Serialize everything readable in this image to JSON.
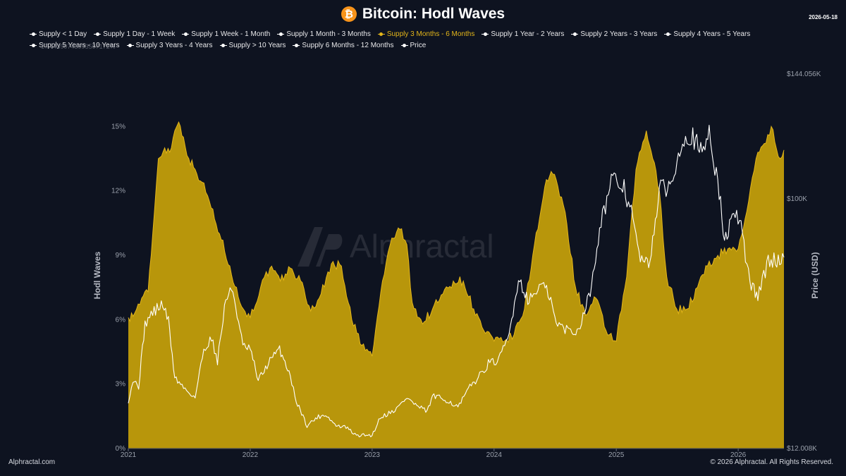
{
  "header": {
    "title": "Bitcoin: Hodl Waves",
    "date": "2026-05-18",
    "icon": "bitcoin-icon"
  },
  "legend": [
    {
      "label": "Supply < 1 Day",
      "color": "#ffffff"
    },
    {
      "label": "Supply 1 Day - 1 Week",
      "color": "#ffffff"
    },
    {
      "label": "Supply 1 Week - 1 Month",
      "color": "#ffffff"
    },
    {
      "label": "Supply 1 Month - 3 Months",
      "color": "#ffffff"
    },
    {
      "label": "Supply 3 Months - 6 Months",
      "color": "#e3b51a",
      "active": true
    },
    {
      "label": "Supply 1 Year - 2 Years",
      "color": "#ffffff"
    },
    {
      "label": "Supply 2 Years - 3 Years",
      "color": "#ffffff"
    },
    {
      "label": "Supply 4 Years - 5 Years",
      "color": "#ffffff"
    },
    {
      "label": "Supply 5 Years - 10 Years",
      "color": "#ffffff"
    },
    {
      "label": "Supply 3 Years - 4 Years",
      "color": "#ffffff"
    },
    {
      "label": "Supply > 10 Years",
      "color": "#ffffff"
    },
    {
      "label": "Supply 6 Months - 12 Months",
      "color": "#ffffff"
    },
    {
      "label": "Price",
      "color": "#ffffff"
    }
  ],
  "overlap_text": "17.44399743993597172%",
  "footer": {
    "left": "Alphractal.com",
    "right": "© 2026 Alphractal. All Rights Reserved."
  },
  "watermark": "Alphractal",
  "colors": {
    "background": "#0e1320",
    "area": "#b8960b",
    "area_line": "#e3b51a",
    "price_line": "#ffffff"
  },
  "chart_data": {
    "type": "area",
    "ylabel": "Hodl Waves",
    "y2label": "Price (USD)",
    "ylim": [
      0,
      17.44
    ],
    "yticks": [
      0,
      3,
      6,
      9,
      12,
      15
    ],
    "ytick_labels": [
      "0%",
      "3%",
      "6%",
      "9%",
      "12%",
      "15%"
    ],
    "y2lim": [
      12008,
      144056
    ],
    "y2ticks": [
      12008,
      100000,
      144056
    ],
    "y2tick_labels": [
      "$12.008K",
      "$100K",
      "$144.056K"
    ],
    "xlim": [
      "2021-01-01",
      "2026-05-18"
    ],
    "xticks": [
      "2021-01-01",
      "2022-01-01",
      "2023-01-01",
      "2024-01-01",
      "2025-01-01",
      "2026-01-01"
    ],
    "xtick_labels": [
      "2021",
      "2022",
      "2023",
      "2024",
      "2025",
      "2026"
    ],
    "grid": false,
    "legend_position": "top",
    "series": [
      {
        "name": "Supply 3 Months - 6 Months",
        "axis": "left",
        "color": "#e3b51a",
        "points": [
          [
            "2021-01-01",
            6.1
          ],
          [
            "2021-01-20",
            6.3
          ],
          [
            "2021-02-10",
            7.0
          ],
          [
            "2021-03-01",
            7.3
          ],
          [
            "2021-03-20",
            11.0
          ],
          [
            "2021-04-01",
            13.5
          ],
          [
            "2021-04-20",
            14.0
          ],
          [
            "2021-05-05",
            13.8
          ],
          [
            "2021-05-20",
            14.8
          ],
          [
            "2021-06-01",
            15.2
          ],
          [
            "2021-06-15",
            14.5
          ],
          [
            "2021-07-01",
            13.5
          ],
          [
            "2021-07-20",
            13.0
          ],
          [
            "2021-08-10",
            12.4
          ],
          [
            "2021-09-01",
            11.5
          ],
          [
            "2021-10-01",
            10.0
          ],
          [
            "2021-11-01",
            8.5
          ],
          [
            "2021-12-01",
            6.8
          ],
          [
            "2022-01-01",
            6.1
          ],
          [
            "2022-02-01",
            7.5
          ],
          [
            "2022-03-01",
            8.4
          ],
          [
            "2022-04-01",
            7.8
          ],
          [
            "2022-05-01",
            8.4
          ],
          [
            "2022-06-01",
            7.8
          ],
          [
            "2022-07-01",
            6.4
          ],
          [
            "2022-08-01",
            7.2
          ],
          [
            "2022-09-01",
            8.6
          ],
          [
            "2022-10-01",
            8.5
          ],
          [
            "2022-11-01",
            6.0
          ],
          [
            "2022-12-01",
            4.8
          ],
          [
            "2023-01-01",
            4.3
          ],
          [
            "2023-02-01",
            7.8
          ],
          [
            "2023-03-01",
            9.8
          ],
          [
            "2023-03-25",
            10.2
          ],
          [
            "2023-04-15",
            9.5
          ],
          [
            "2023-05-01",
            6.8
          ],
          [
            "2023-06-01",
            5.8
          ],
          [
            "2023-07-01",
            6.5
          ],
          [
            "2023-08-01",
            7.2
          ],
          [
            "2023-09-01",
            7.8
          ],
          [
            "2023-10-01",
            7.8
          ],
          [
            "2023-11-01",
            6.5
          ],
          [
            "2023-12-01",
            5.5
          ],
          [
            "2024-01-01",
            5.0
          ],
          [
            "2024-02-01",
            5.0
          ],
          [
            "2024-03-01",
            5.3
          ],
          [
            "2024-04-01",
            6.5
          ],
          [
            "2024-05-01",
            9.5
          ],
          [
            "2024-06-01",
            12.2
          ],
          [
            "2024-06-20",
            12.9
          ],
          [
            "2024-07-10",
            12.2
          ],
          [
            "2024-08-01",
            11.0
          ],
          [
            "2024-09-01",
            7.5
          ],
          [
            "2024-10-01",
            6.2
          ],
          [
            "2024-11-01",
            7.0
          ],
          [
            "2024-12-01",
            5.5
          ],
          [
            "2025-01-01",
            5.0
          ],
          [
            "2025-02-01",
            8.0
          ],
          [
            "2025-03-01",
            13.0
          ],
          [
            "2025-04-01",
            14.8
          ],
          [
            "2025-04-20",
            13.5
          ],
          [
            "2025-05-10",
            12.0
          ],
          [
            "2025-06-01",
            8.0
          ],
          [
            "2025-07-01",
            6.5
          ],
          [
            "2025-08-01",
            6.5
          ],
          [
            "2025-09-01",
            7.5
          ],
          [
            "2025-10-01",
            8.5
          ],
          [
            "2025-11-01",
            9.0
          ],
          [
            "2025-12-01",
            9.3
          ],
          [
            "2026-01-01",
            9.3
          ],
          [
            "2026-02-01",
            11.5
          ],
          [
            "2026-03-01",
            13.8
          ],
          [
            "2026-03-20",
            14.2
          ],
          [
            "2026-04-10",
            15.0
          ],
          [
            "2026-05-01",
            13.6
          ],
          [
            "2026-05-18",
            13.9
          ]
        ]
      },
      {
        "name": "Price",
        "axis": "right",
        "color": "#ffffff",
        "points": [
          [
            "2021-01-01",
            29000
          ],
          [
            "2021-01-15",
            36000
          ],
          [
            "2021-02-01",
            34000
          ],
          [
            "2021-02-20",
            56000
          ],
          [
            "2021-03-15",
            60000
          ],
          [
            "2021-04-14",
            63000
          ],
          [
            "2021-05-01",
            57000
          ],
          [
            "2021-05-20",
            37000
          ],
          [
            "2021-06-20",
            33000
          ],
          [
            "2021-07-20",
            30000
          ],
          [
            "2021-08-15",
            47000
          ],
          [
            "2021-09-07",
            51000
          ],
          [
            "2021-09-25",
            43000
          ],
          [
            "2021-10-20",
            65000
          ],
          [
            "2021-11-10",
            68000
          ],
          [
            "2021-12-10",
            48000
          ],
          [
            "2022-01-01",
            47000
          ],
          [
            "2022-01-25",
            36000
          ],
          [
            "2022-03-01",
            43000
          ],
          [
            "2022-03-30",
            47000
          ],
          [
            "2022-05-01",
            38000
          ],
          [
            "2022-05-15",
            30000
          ],
          [
            "2022-06-20",
            20000
          ],
          [
            "2022-07-20",
            23000
          ],
          [
            "2022-08-15",
            24000
          ],
          [
            "2022-09-15",
            20000
          ],
          [
            "2022-10-15",
            19500
          ],
          [
            "2022-11-15",
            16500
          ],
          [
            "2022-12-15",
            16800
          ],
          [
            "2023-01-01",
            16600
          ],
          [
            "2023-01-25",
            23000
          ],
          [
            "2023-02-20",
            24500
          ],
          [
            "2023-03-15",
            26000
          ],
          [
            "2023-04-15",
            30000
          ],
          [
            "2023-05-15",
            27000
          ],
          [
            "2023-06-15",
            25000
          ],
          [
            "2023-07-01",
            30500
          ],
          [
            "2023-08-15",
            29000
          ],
          [
            "2023-09-15",
            26500
          ],
          [
            "2023-10-25",
            34500
          ],
          [
            "2023-11-15",
            37000
          ],
          [
            "2023-12-15",
            42000
          ],
          [
            "2024-01-15",
            43000
          ],
          [
            "2024-02-15",
            52000
          ],
          [
            "2024-03-14",
            72000
          ],
          [
            "2024-04-15",
            64000
          ],
          [
            "2024-05-20",
            70000
          ],
          [
            "2024-06-15",
            66000
          ],
          [
            "2024-07-05",
            56000
          ],
          [
            "2024-08-05",
            54000
          ],
          [
            "2024-09-06",
            53000
          ],
          [
            "2024-10-15",
            67000
          ],
          [
            "2024-11-12",
            90000
          ],
          [
            "2024-12-17",
            106000
          ],
          [
            "2025-01-20",
            105000
          ],
          [
            "2025-02-15",
            96000
          ],
          [
            "2025-03-10",
            80000
          ],
          [
            "2025-04-08",
            76000
          ],
          [
            "2025-05-10",
            103000
          ],
          [
            "2025-06-15",
            105000
          ],
          [
            "2025-07-14",
            121000
          ],
          [
            "2025-08-14",
            123000
          ],
          [
            "2025-09-15",
            115000
          ],
          [
            "2025-10-06",
            125000
          ],
          [
            "2025-11-05",
            102000
          ],
          [
            "2025-11-21",
            85000
          ],
          [
            "2025-12-10",
            92000
          ],
          [
            "2026-01-05",
            94000
          ],
          [
            "2026-02-05",
            70000
          ],
          [
            "2026-03-01",
            66000
          ],
          [
            "2026-04-01",
            78000
          ],
          [
            "2026-05-18",
            79000
          ]
        ]
      }
    ]
  }
}
